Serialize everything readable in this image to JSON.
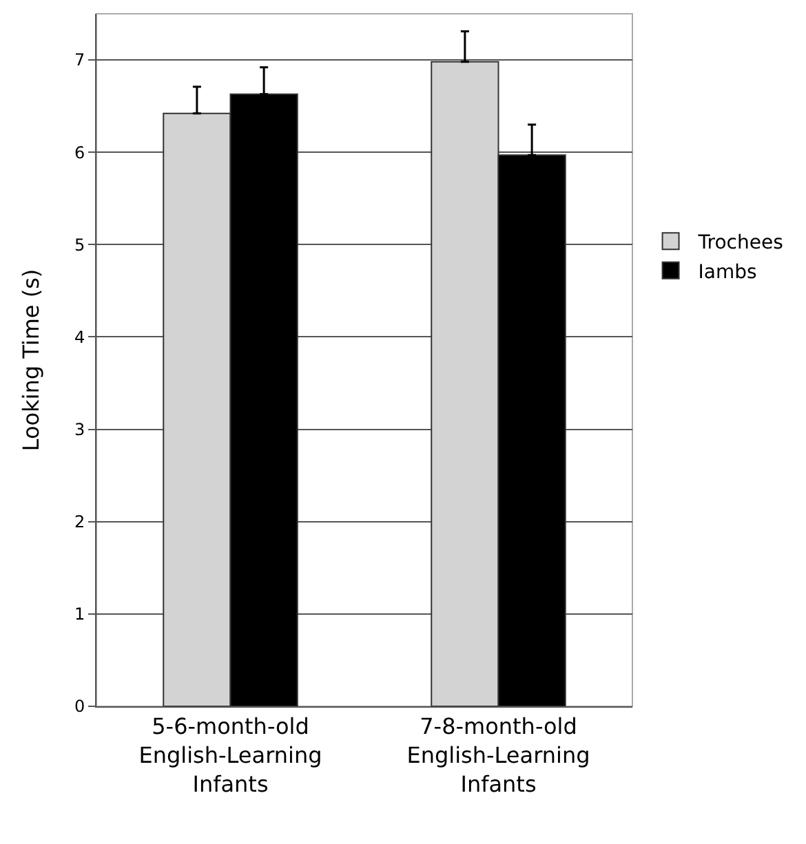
{
  "chart_data": {
    "type": "bar",
    "ylabel": "Looking Time (s)",
    "categories": [
      "5-6-month-old\nEnglish-Learning\nInfants",
      "7-8-month-old\nEnglish-Learning\nInfants"
    ],
    "series": [
      {
        "name": "Trochees",
        "color": "#d3d3d3",
        "values": [
          6.42,
          6.98
        ],
        "errors": [
          [
            6.42,
            6.71
          ],
          [
            6.98,
            7.31
          ]
        ]
      },
      {
        "name": "Iambs",
        "color": "#000000",
        "values": [
          6.63,
          5.97
        ],
        "errors": [
          [
            6.63,
            6.92
          ],
          [
            5.97,
            6.3
          ]
        ]
      }
    ],
    "ylim": [
      0,
      7.5
    ],
    "yticks": [
      0,
      1,
      2,
      3,
      4,
      5,
      6,
      7
    ],
    "grid": "y",
    "legend": "right"
  }
}
